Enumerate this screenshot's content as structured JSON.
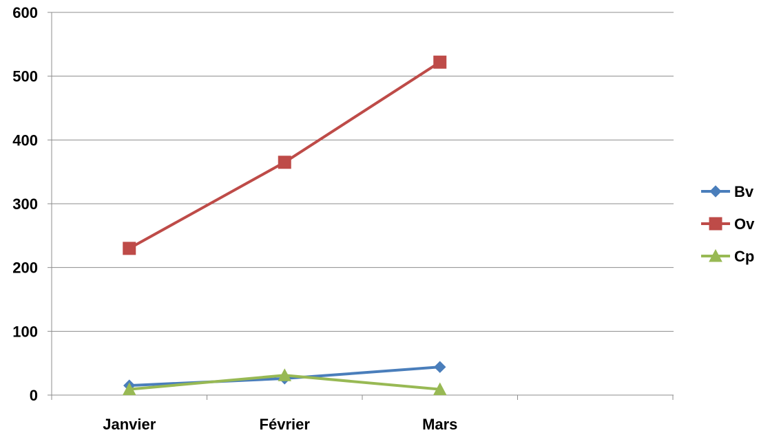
{
  "chart_data": {
    "type": "line",
    "categories": [
      "Janvier",
      "Février",
      "Mars"
    ],
    "ylim": [
      0,
      600
    ],
    "yticks": [
      0,
      100,
      200,
      300,
      400,
      500,
      600
    ],
    "grid": true,
    "legend_position": "right",
    "series": [
      {
        "name": "Bv",
        "values": [
          15,
          26,
          44
        ],
        "color": "#4a7ebb",
        "marker": "diamond"
      },
      {
        "name": "Ov",
        "values": [
          230,
          365,
          522
        ],
        "color": "#be4b48",
        "marker": "square"
      },
      {
        "name": "Cp",
        "values": [
          9,
          31,
          9
        ],
        "color": "#98b954",
        "marker": "triangle"
      }
    ]
  }
}
